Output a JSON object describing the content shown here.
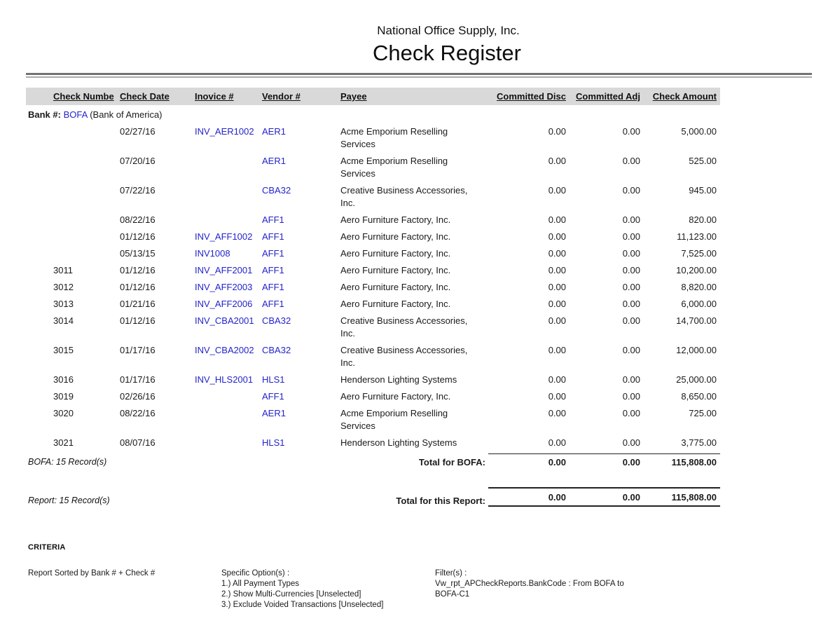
{
  "report": {
    "company": "National Office Supply, Inc.",
    "title": "Check Register"
  },
  "colors": {
    "link_blue": "#2323cc",
    "header_bar_bg": "#d9d9d9",
    "rule_gray": "#737373"
  },
  "table": {
    "headers": {
      "check_number": "Check Numbe",
      "check_date": "Check Date",
      "invoice": "Inovice #",
      "vendor": "Vendor #",
      "payee": "Payee",
      "committed_disc": "Committed Disc",
      "committed_adj": "Committed Adj",
      "check_amount": "Check Amount"
    },
    "bank_group": {
      "label_prefix": "Bank #:",
      "bank_code": "BOFA",
      "bank_name": "(Bank of America)"
    },
    "rows": [
      {
        "check": "",
        "date": "02/27/16",
        "invoice": "INV_AER1002",
        "vendor": "AER1",
        "payee": "Acme Emporium Reselling Services",
        "disc": "0.00",
        "adj": "0.00",
        "amount": "5,000.00"
      },
      {
        "check": "",
        "date": "07/20/16",
        "invoice": "",
        "vendor": "AER1",
        "payee": "Acme Emporium Reselling Services",
        "disc": "0.00",
        "adj": "0.00",
        "amount": "525.00"
      },
      {
        "check": "",
        "date": "07/22/16",
        "invoice": "",
        "vendor": "CBA32",
        "payee": "Creative Business Accessories, Inc.",
        "disc": "0.00",
        "adj": "0.00",
        "amount": "945.00"
      },
      {
        "check": "",
        "date": "08/22/16",
        "invoice": "",
        "vendor": "AFF1",
        "payee": "Aero Furniture Factory, Inc.",
        "disc": "0.00",
        "adj": "0.00",
        "amount": "820.00"
      },
      {
        "check": "",
        "date": "01/12/16",
        "invoice": "INV_AFF1002",
        "vendor": "AFF1",
        "payee": "Aero Furniture Factory, Inc.",
        "disc": "0.00",
        "adj": "0.00",
        "amount": "11,123.00"
      },
      {
        "check": "",
        "date": "05/13/15",
        "invoice": "INV1008",
        "vendor": "AFF1",
        "payee": "Aero Furniture Factory, Inc.",
        "disc": "0.00",
        "adj": "0.00",
        "amount": "7,525.00"
      },
      {
        "check": "3011",
        "date": "01/12/16",
        "invoice": "INV_AFF2001",
        "vendor": "AFF1",
        "payee": "Aero Furniture Factory, Inc.",
        "disc": "0.00",
        "adj": "0.00",
        "amount": "10,200.00"
      },
      {
        "check": "3012",
        "date": "01/12/16",
        "invoice": "INV_AFF2003",
        "vendor": "AFF1",
        "payee": "Aero Furniture Factory, Inc.",
        "disc": "0.00",
        "adj": "0.00",
        "amount": "8,820.00"
      },
      {
        "check": "3013",
        "date": "01/21/16",
        "invoice": "INV_AFF2006",
        "vendor": "AFF1",
        "payee": "Aero Furniture Factory, Inc.",
        "disc": "0.00",
        "adj": "0.00",
        "amount": "6,000.00"
      },
      {
        "check": "3014",
        "date": "01/12/16",
        "invoice": "INV_CBA2001",
        "vendor": "CBA32",
        "payee": "Creative Business Accessories, Inc.",
        "disc": "0.00",
        "adj": "0.00",
        "amount": "14,700.00"
      },
      {
        "check": "3015",
        "date": "01/17/16",
        "invoice": "INV_CBA2002",
        "vendor": "CBA32",
        "payee": "Creative Business Accessories, Inc.",
        "disc": "0.00",
        "adj": "0.00",
        "amount": "12,000.00"
      },
      {
        "check": "3016",
        "date": "01/17/16",
        "invoice": "INV_HLS2001",
        "vendor": "HLS1",
        "payee": "Henderson Lighting Systems",
        "disc": "0.00",
        "adj": "0.00",
        "amount": "25,000.00"
      },
      {
        "check": "3019",
        "date": "02/26/16",
        "invoice": "",
        "vendor": "AFF1",
        "payee": "Aero Furniture Factory, Inc.",
        "disc": "0.00",
        "adj": "0.00",
        "amount": "8,650.00"
      },
      {
        "check": "3020",
        "date": "08/22/16",
        "invoice": "",
        "vendor": "AER1",
        "payee": "Acme Emporium Reselling Services",
        "disc": "0.00",
        "adj": "0.00",
        "amount": "725.00"
      },
      {
        "check": "3021",
        "date": "08/07/16",
        "invoice": "",
        "vendor": "HLS1",
        "payee": "Henderson Lighting Systems",
        "disc": "0.00",
        "adj": "0.00",
        "amount": "3,775.00"
      }
    ],
    "group_total": {
      "records": "BOFA: 15 Record(s)",
      "label": "Total for BOFA:",
      "disc": "0.00",
      "adj": "0.00",
      "amount": "115,808.00"
    },
    "report_total": {
      "records": "Report: 15 Record(s)",
      "label": "Total for this Report:",
      "disc": "0.00",
      "adj": "0.00",
      "amount": "115,808.00"
    }
  },
  "criteria": {
    "heading": "CRITERIA",
    "sorted_by": "Report Sorted by Bank # + Check #",
    "options_title": "Specific Option(s) :",
    "options": [
      "1.) All Payment Types",
      "2.) Show Multi-Currencies [Unselected]",
      "3.) Exclude Voided Transactions [Unselected]"
    ],
    "filters_title": "Filter(s) :",
    "filter_lines": [
      "Vw_rpt_APCheckReports.BankCode :  From BOFA to",
      "BOFA-C1"
    ]
  }
}
